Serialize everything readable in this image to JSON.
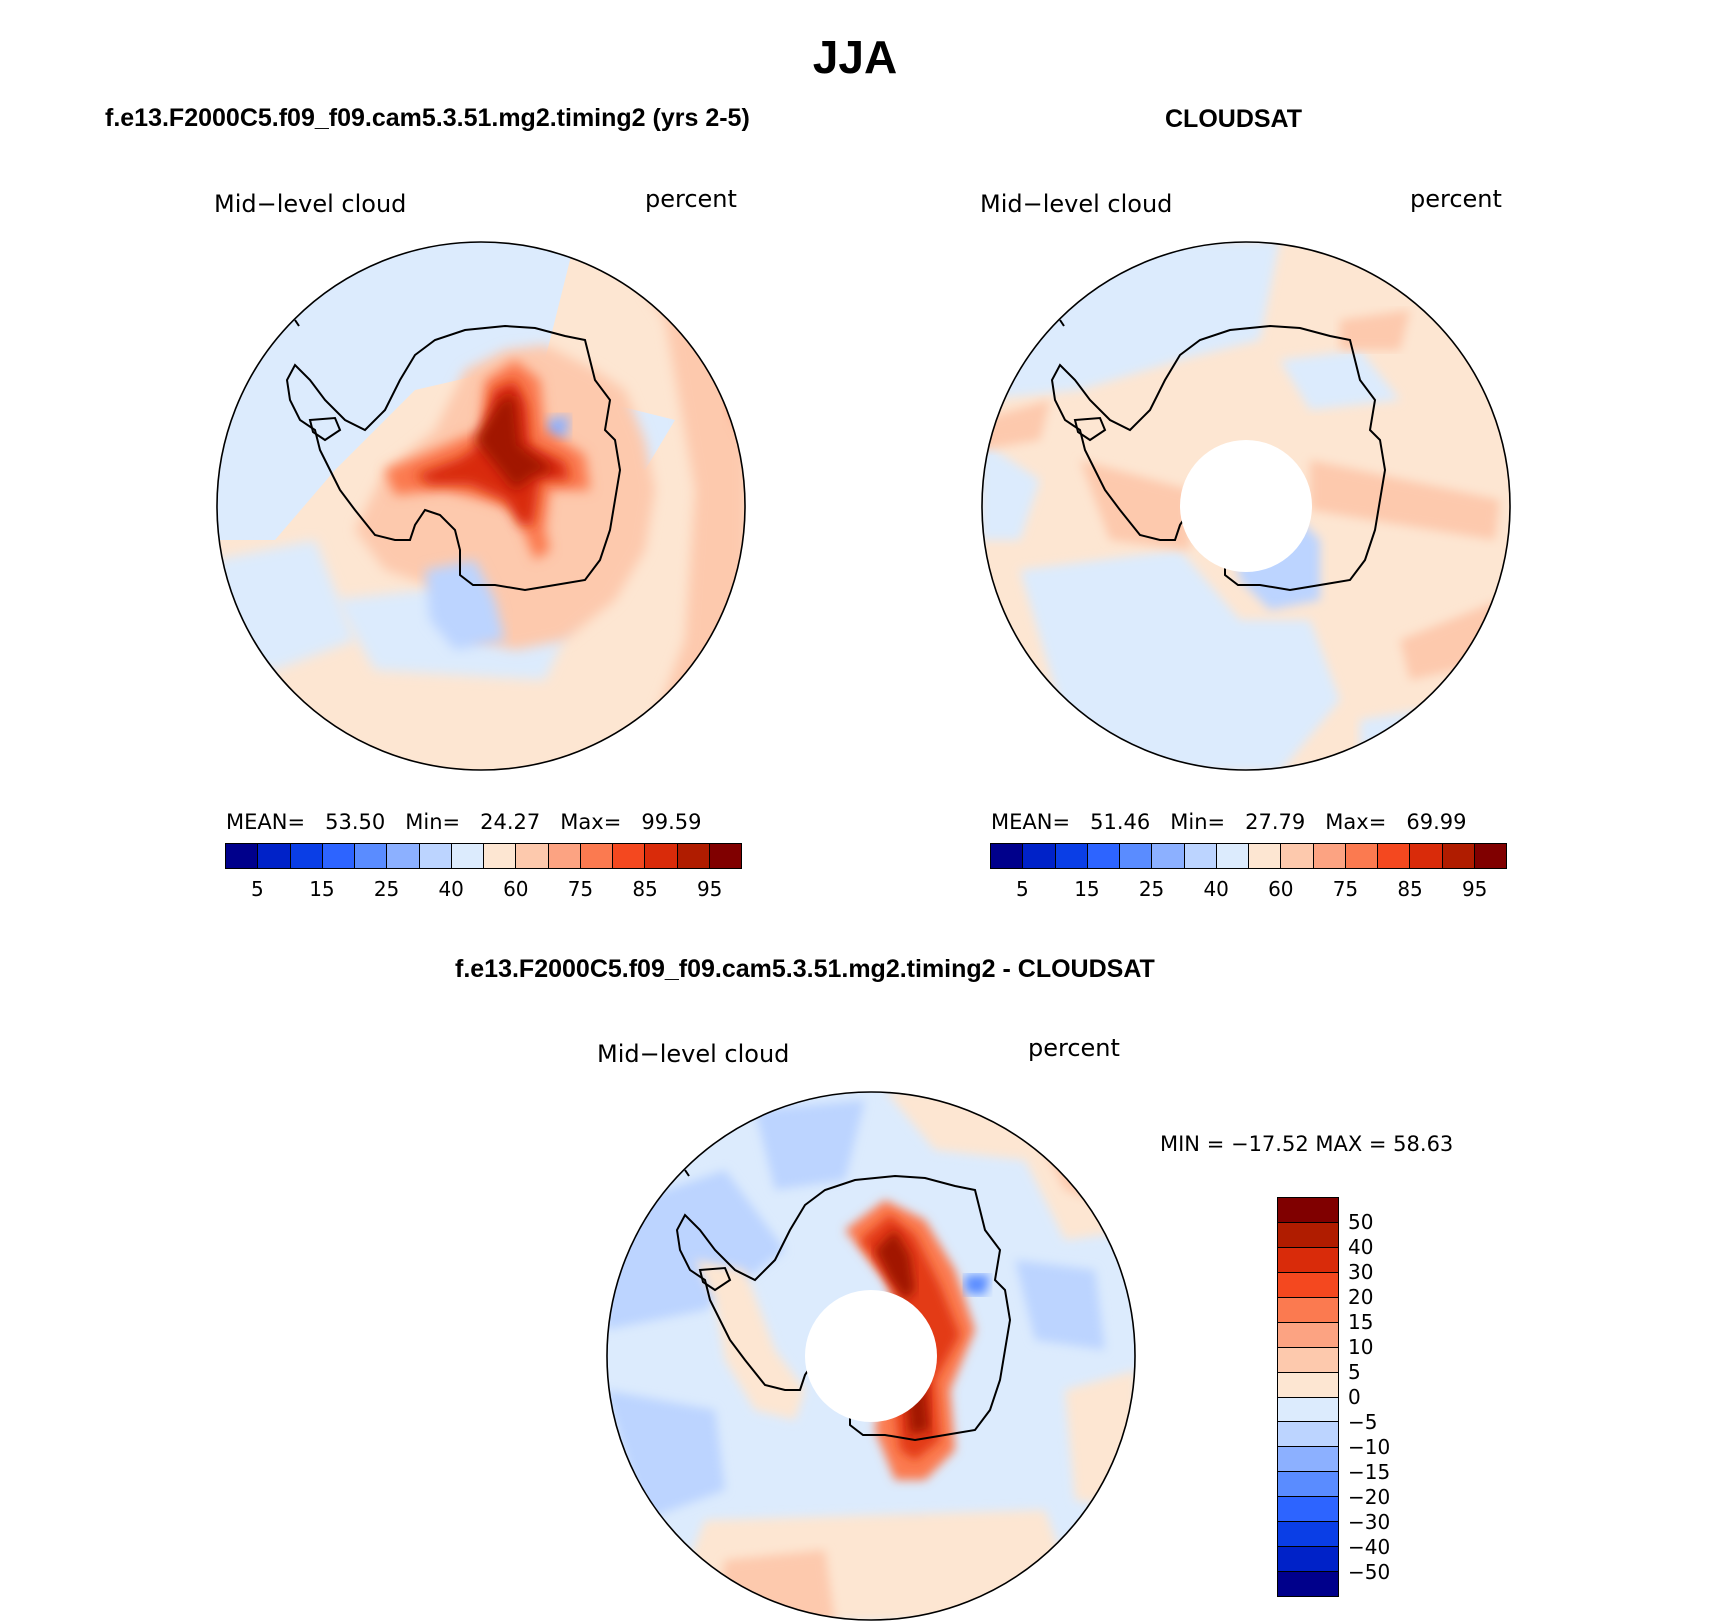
{
  "page": {
    "title": "JJA"
  },
  "panels": [
    {
      "title": "f.e13.F2000C5.f09_f09.cam5.3.51.mg2.timing2 (yrs 2-5)",
      "left_label": "Mid−level cloud",
      "right_label": "percent",
      "stats": {
        "mean_label": "MEAN=",
        "mean": "53.50",
        "min_label": "Min=",
        "min": "24.27",
        "max_label": "Max=",
        "max": "99.59"
      }
    },
    {
      "title": "CLOUDSAT",
      "left_label": "Mid−level cloud",
      "right_label": "percent",
      "stats": {
        "mean_label": "MEAN=",
        "mean": "51.46",
        "min_label": "Min=",
        "min": "27.79",
        "max_label": "Max=",
        "max": "69.99"
      }
    },
    {
      "title": "f.e13.F2000C5.f09_f09.cam5.3.51.mg2.timing2 - CLOUDSAT",
      "left_label": "Mid−level cloud",
      "right_label": "percent",
      "stats_line": "MIN = −17.52 MAX =   58.63"
    }
  ],
  "colorbar_horizontal": {
    "colors": [
      "#00008b",
      "#0022c8",
      "#0a3ee6",
      "#2d64ff",
      "#5a8cff",
      "#8cb0ff",
      "#bcd4ff",
      "#dcebfd",
      "#fde6d2",
      "#fdc9ad",
      "#fca382",
      "#fb7a50",
      "#f4481f",
      "#d92b0a",
      "#b01c00",
      "#800000"
    ],
    "labels": [
      "5",
      "15",
      "25",
      "40",
      "60",
      "75",
      "85",
      "95"
    ]
  },
  "colorbar_vertical": {
    "colors": [
      "#800000",
      "#b01c00",
      "#d92b0a",
      "#f4481f",
      "#fb7a50",
      "#fca382",
      "#fdc9ad",
      "#fde6d2",
      "#dcebfd",
      "#bcd4ff",
      "#8cb0ff",
      "#5a8cff",
      "#2d64ff",
      "#0a3ee6",
      "#0022c8",
      "#00008b"
    ],
    "labels": [
      "50",
      "40",
      "30",
      "20",
      "15",
      "10",
      "5",
      "0",
      "−5",
      "−10",
      "−15",
      "−20",
      "−30",
      "−40",
      "−50"
    ]
  },
  "colors": {
    "ocean_light_blue": "#dcebfd",
    "pale_orange": "#fde6d2",
    "light_orange": "#fdc9ad",
    "blue": "#bcd4ff",
    "dark_red": "#a11800",
    "red": "#e33a14"
  }
}
